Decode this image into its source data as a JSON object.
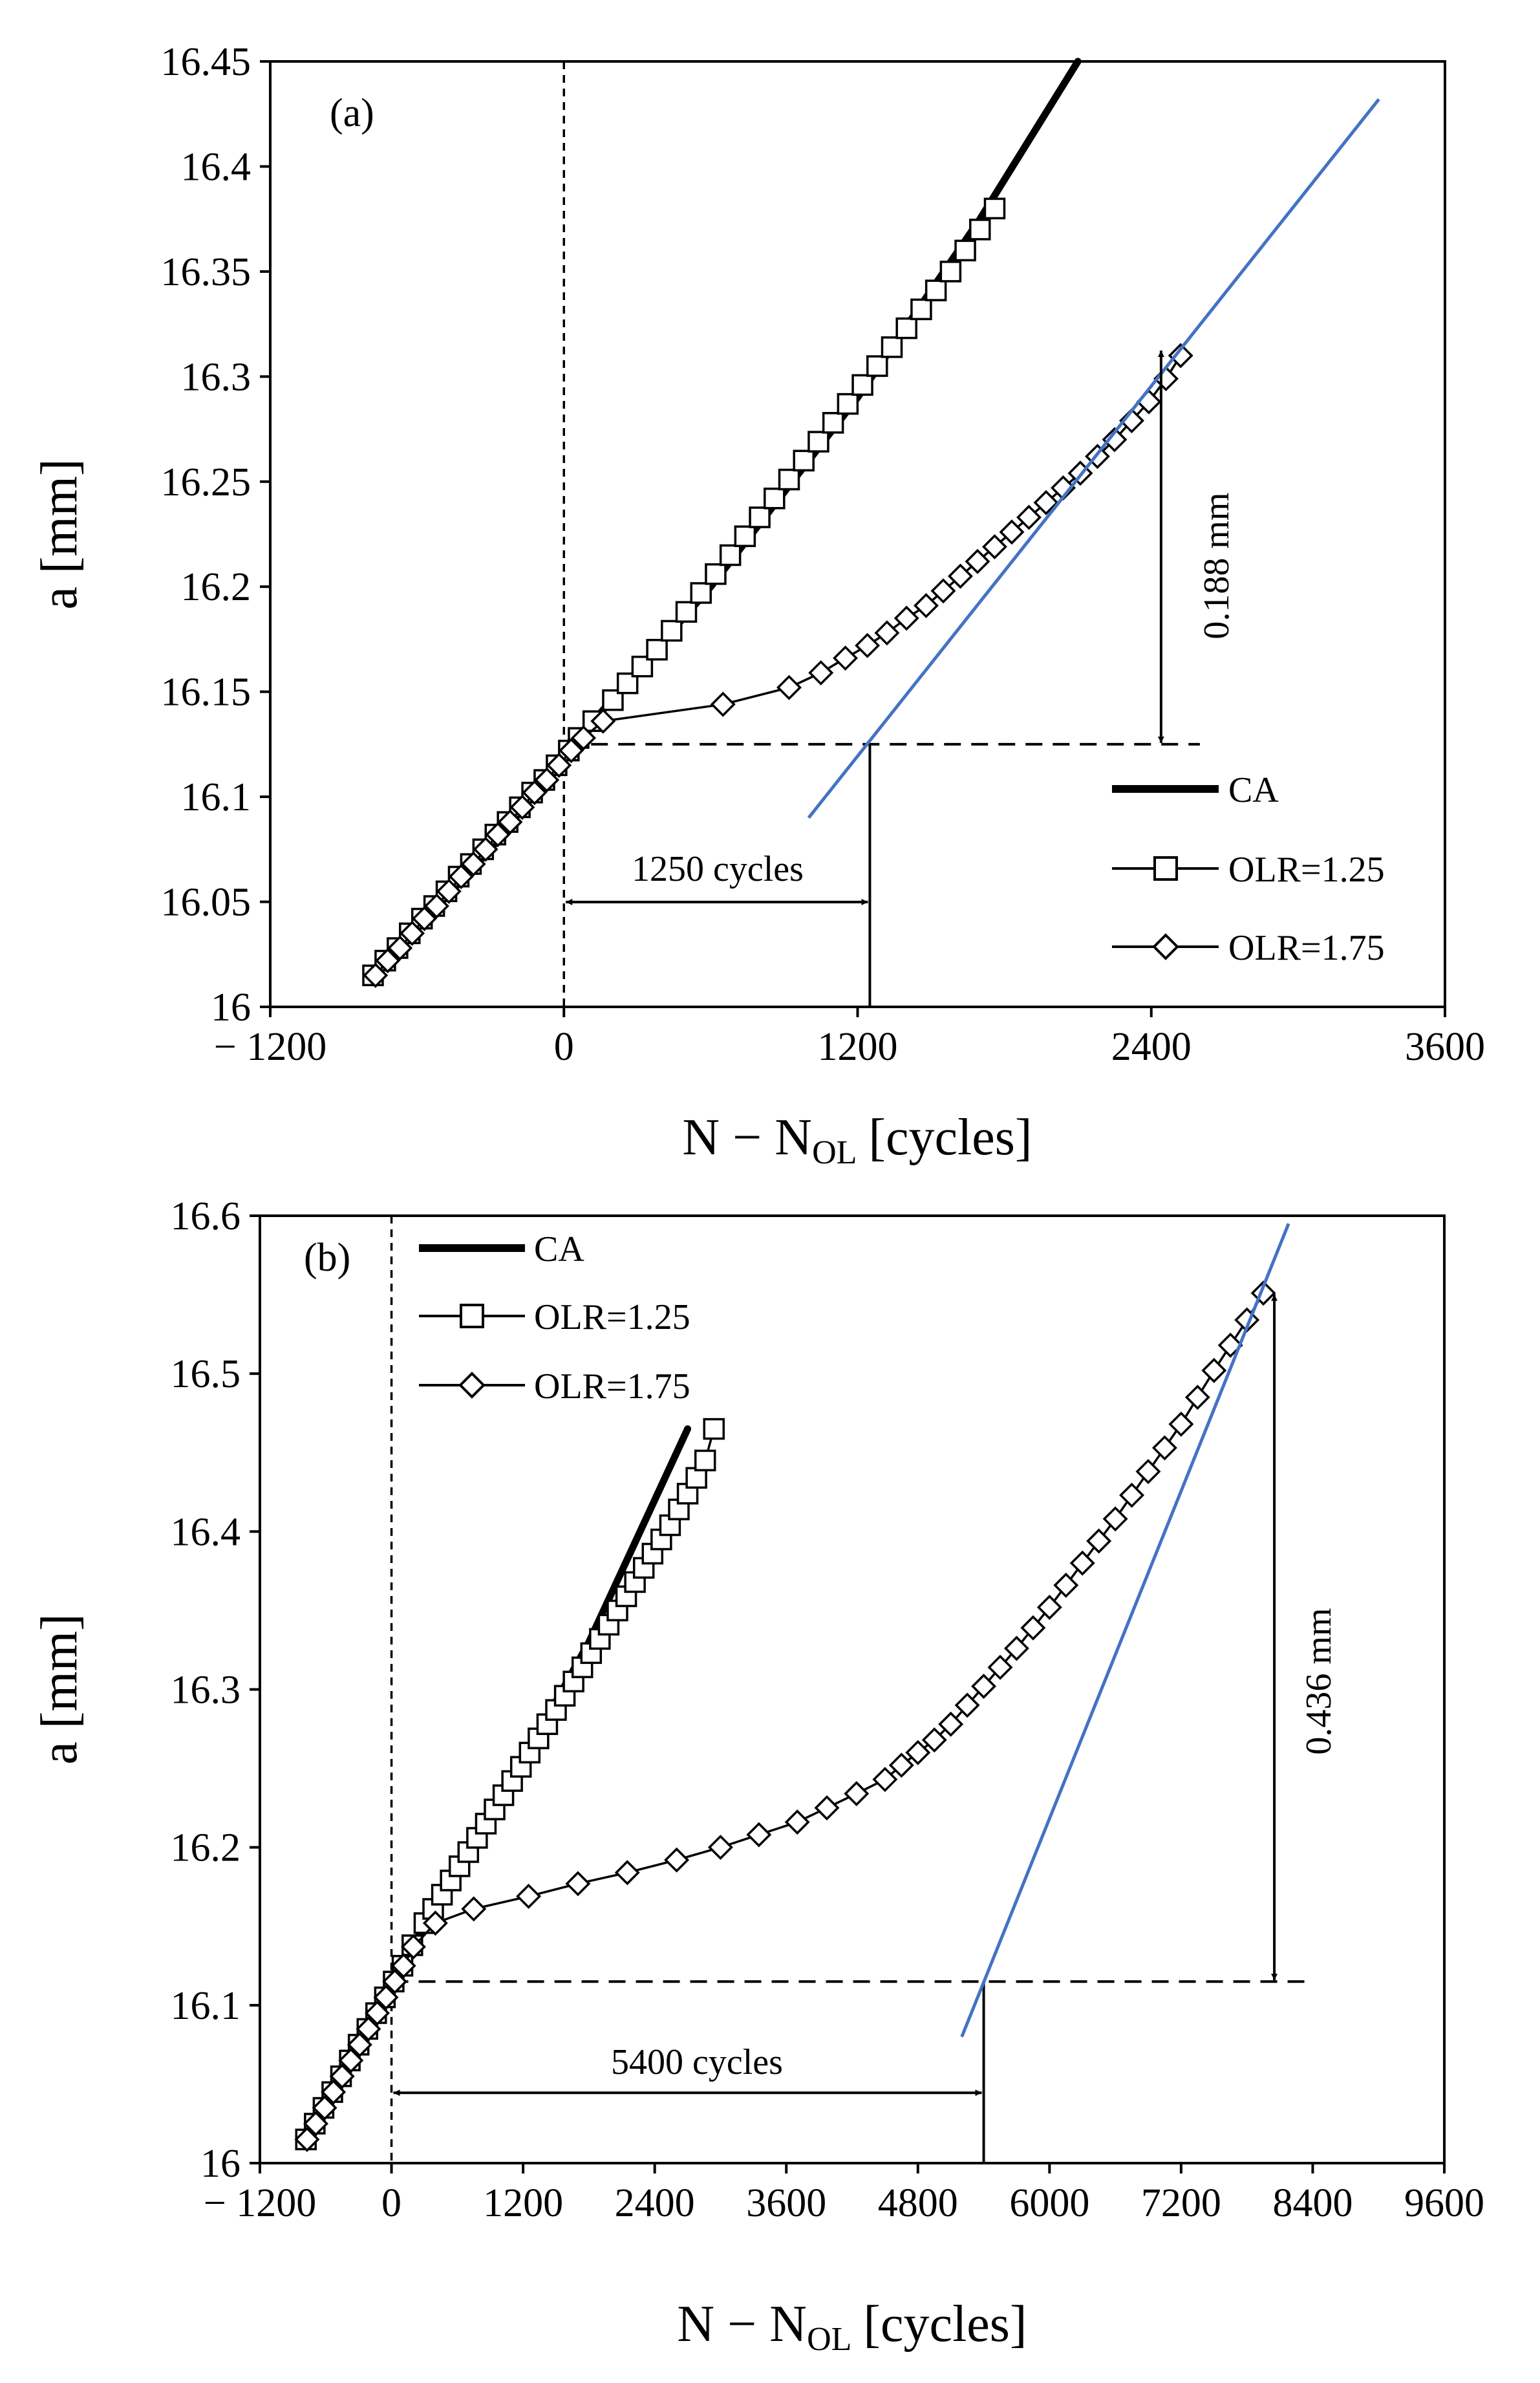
{
  "chart_data": [
    {
      "type": "line",
      "panel_label": "(a)",
      "xlabel": "N − N",
      "xlabel_sub": "OL",
      "xlabel_unit": "[cycles]",
      "ylabel": "a [mm]",
      "xlim": [
        -1200,
        3600
      ],
      "ylim": [
        16.0,
        16.45
      ],
      "x_ticks": [
        -1200,
        0,
        1200,
        2400,
        3600
      ],
      "x_tick_labels": [
        "− 1200",
        "0",
        "1200",
        "2400",
        "3600"
      ],
      "y_ticks": [
        16.0,
        16.05,
        16.1,
        16.15,
        16.2,
        16.25,
        16.3,
        16.35,
        16.4,
        16.45
      ],
      "y_tick_labels": [
        "16",
        "16.05",
        "16.1",
        "16.15",
        "16.2",
        "16.25",
        "16.3",
        "16.35",
        "16.4",
        "16.45"
      ],
      "legend": {
        "placement": "bottom-right",
        "entries": [
          "CA",
          "OLR=1.25",
          "OLR=1.75"
        ]
      },
      "series": [
        {
          "name": "CA",
          "marker": "none",
          "x": [
            -780,
            -300,
            0,
            600,
            1200,
            1700,
            2100
          ],
          "y": [
            16.015,
            16.075,
            16.12,
            16.2,
            16.29,
            16.375,
            16.45
          ]
        },
        {
          "name": "OLR=1.25",
          "marker": "square",
          "x": [
            -780,
            -730,
            -680,
            -630,
            -580,
            -530,
            -480,
            -430,
            -380,
            -330,
            -280,
            -230,
            -180,
            -130,
            -80,
            -30,
            20,
            60,
            120,
            200,
            260,
            320,
            380,
            440,
            500,
            560,
            620,
            680,
            740,
            800,
            860,
            920,
            980,
            1040,
            1100,
            1160,
            1220,
            1280,
            1340,
            1400,
            1460,
            1520,
            1580,
            1640,
            1700,
            1760
          ],
          "y": [
            16.015,
            16.022,
            16.028,
            16.035,
            16.042,
            16.048,
            16.055,
            16.062,
            16.068,
            16.075,
            16.082,
            16.088,
            16.095,
            16.102,
            16.108,
            16.115,
            16.122,
            16.128,
            16.136,
            16.146,
            16.154,
            16.162,
            16.17,
            16.179,
            16.188,
            16.197,
            16.206,
            16.215,
            16.224,
            16.233,
            16.242,
            16.251,
            16.26,
            16.269,
            16.278,
            16.287,
            16.296,
            16.305,
            16.314,
            16.323,
            16.332,
            16.341,
            16.35,
            16.36,
            16.37,
            16.38
          ]
        },
        {
          "name": "OLR=1.75",
          "marker": "diamond",
          "x": [
            -770,
            -720,
            -670,
            -620,
            -570,
            -520,
            -470,
            -420,
            -370,
            -320,
            -270,
            -220,
            -170,
            -120,
            -70,
            -20,
            30,
            80,
            160,
            650,
            920,
            1050,
            1150,
            1240,
            1320,
            1400,
            1480,
            1550,
            1620,
            1690,
            1760,
            1830,
            1900,
            1970,
            2040,
            2110,
            2180,
            2250,
            2320,
            2390,
            2460,
            2520
          ],
          "y": [
            16.015,
            16.022,
            16.028,
            16.035,
            16.042,
            16.048,
            16.055,
            16.062,
            16.068,
            16.075,
            16.082,
            16.088,
            16.095,
            16.102,
            16.108,
            16.115,
            16.122,
            16.128,
            16.136,
            16.144,
            16.152,
            16.159,
            16.166,
            16.172,
            16.178,
            16.185,
            16.191,
            16.198,
            16.205,
            16.212,
            16.219,
            16.226,
            16.233,
            16.24,
            16.247,
            16.254,
            16.262,
            16.27,
            16.279,
            16.288,
            16.299,
            16.31
          ]
        }
      ],
      "tangent_line": {
        "x": [
          1000,
          3330
        ],
        "y": [
          16.09,
          16.432
        ],
        "color": "#4472C4"
      },
      "annotations": {
        "delay_label": "1250 cycles",
        "delay_value": 1250,
        "retard_label": "0.188 mm",
        "retard_value": 0.188,
        "reference_a": 16.125,
        "tangent_point_x": 1250,
        "peak_a": 16.313,
        "arrow_x": 2440
      }
    },
    {
      "type": "line",
      "panel_label": "(b)",
      "xlabel": "N − N",
      "xlabel_sub": "OL",
      "xlabel_unit": "[cycles]",
      "ylabel": "a [mm]",
      "xlim": [
        -1200,
        9600
      ],
      "ylim": [
        16.0,
        16.6
      ],
      "x_ticks": [
        -1200,
        0,
        1200,
        2400,
        3600,
        4800,
        6000,
        7200,
        8400,
        9600
      ],
      "x_tick_labels": [
        "− 1200",
        "0",
        "1200",
        "2400",
        "3600",
        "4800",
        "6000",
        "7200",
        "8400",
        "9600"
      ],
      "y_ticks": [
        16.0,
        16.1,
        16.2,
        16.3,
        16.4,
        16.5,
        16.6
      ],
      "y_tick_labels": [
        "16",
        "16.1",
        "16.2",
        "16.3",
        "16.4",
        "16.5",
        "16.6"
      ],
      "legend": {
        "placement": "top-left",
        "entries": [
          "CA",
          "OLR=1.25",
          "OLR=1.75"
        ]
      },
      "series": [
        {
          "name": "CA",
          "marker": "none",
          "x": [
            -780,
            0,
            600,
            1200,
            1800,
            2400,
            2700
          ],
          "y": [
            16.015,
            16.115,
            16.185,
            16.255,
            16.33,
            16.42,
            16.465
          ]
        },
        {
          "name": "OLR=1.25",
          "marker": "square",
          "x": [
            -780,
            -700,
            -620,
            -540,
            -460,
            -380,
            -300,
            -220,
            -140,
            -60,
            20,
            100,
            190,
            300,
            380,
            460,
            540,
            620,
            700,
            780,
            860,
            940,
            1020,
            1100,
            1180,
            1260,
            1340,
            1420,
            1500,
            1580,
            1660,
            1740,
            1820,
            1900,
            1980,
            2060,
            2140,
            2220,
            2300,
            2380,
            2460,
            2540,
            2620,
            2700,
            2780,
            2860,
            2940
          ],
          "y": [
            16.015,
            16.025,
            16.035,
            16.045,
            16.055,
            16.065,
            16.075,
            16.085,
            16.095,
            16.105,
            16.115,
            16.125,
            16.138,
            16.152,
            16.161,
            16.17,
            16.179,
            16.188,
            16.197,
            16.206,
            16.215,
            16.224,
            16.233,
            16.242,
            16.251,
            16.26,
            16.269,
            16.278,
            16.287,
            16.296,
            16.305,
            16.314,
            16.323,
            16.332,
            16.341,
            16.35,
            16.359,
            16.368,
            16.377,
            16.386,
            16.395,
            16.404,
            16.414,
            16.424,
            16.434,
            16.445,
            16.465
          ]
        },
        {
          "name": "OLR=1.75",
          "marker": "diamond",
          "x": [
            -770,
            -690,
            -610,
            -530,
            -450,
            -370,
            -290,
            -210,
            -130,
            -50,
            30,
            110,
            200,
            400,
            750,
            1250,
            1700,
            2150,
            2600,
            3000,
            3350,
            3700,
            3970,
            4240,
            4500,
            4650,
            4800,
            4950,
            5100,
            5250,
            5400,
            5550,
            5700,
            5850,
            6000,
            6150,
            6300,
            6450,
            6600,
            6750,
            6900,
            7050,
            7200,
            7350,
            7500,
            7650,
            7800,
            7950
          ],
          "y": [
            16.015,
            16.025,
            16.035,
            16.045,
            16.055,
            16.065,
            16.075,
            16.085,
            16.095,
            16.105,
            16.115,
            16.125,
            16.137,
            16.152,
            16.161,
            16.169,
            16.177,
            16.184,
            16.192,
            16.2,
            16.208,
            16.216,
            16.225,
            16.234,
            16.243,
            16.252,
            16.26,
            16.268,
            16.278,
            16.29,
            16.302,
            16.314,
            16.326,
            16.339,
            16.352,
            16.366,
            16.38,
            16.394,
            16.408,
            16.423,
            16.438,
            16.453,
            16.468,
            16.485,
            16.502,
            16.518,
            16.534,
            16.551
          ]
        }
      ],
      "tangent_line": {
        "x": [
          5200,
          8180
        ],
        "y": [
          16.08,
          16.595
        ],
        "color": "#4472C4"
      },
      "annotations": {
        "delay_label": "5400 cycles",
        "delay_value": 5400,
        "retard_label": "0.436 mm",
        "retard_value": 0.436,
        "reference_a": 16.115,
        "tangent_point_x": 5400,
        "peak_a": 16.551,
        "arrow_x": 8050
      }
    }
  ]
}
